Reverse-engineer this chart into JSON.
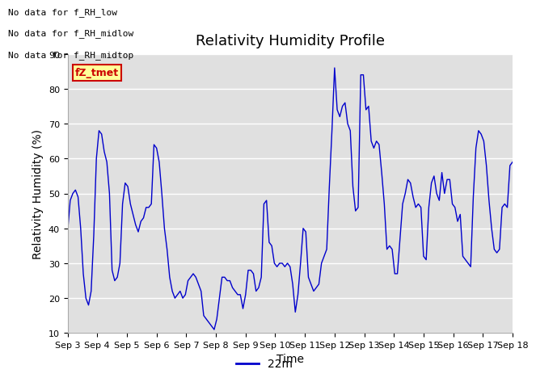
{
  "title": "Relativity Humidity Profile",
  "ylabel": "Relativity Humidity (%)",
  "xlabel": "Time",
  "legend_label": "22m",
  "legend_color": "#0000CC",
  "ylim": [
    10,
    90
  ],
  "yticks": [
    10,
    20,
    30,
    40,
    50,
    60,
    70,
    80,
    90
  ],
  "xtick_labels": [
    "Sep 3",
    "Sep 4",
    "Sep 5",
    "Sep 6",
    "Sep 7",
    "Sep 8",
    "Sep 9",
    "Sep 10",
    "Sep 11",
    "Sep 12",
    "Sep 13",
    "Sep 14",
    "Sep 15",
    "Sep 16",
    "Sep 17",
    "Sep 18"
  ],
  "annotations": [
    "No data for f_RH_low",
    "No data for f_RH_midlow",
    "No data for f_RH_midtop"
  ],
  "fz_tmet_box": {
    "text": "fZ_tmet",
    "color": "#CC0000",
    "bg": "#FFFF99",
    "border": "#CC0000"
  },
  "line_color": "#0000CC",
  "bg_color": "#E0E0E0",
  "title_fontsize": 13,
  "axis_label_fontsize": 10,
  "tick_fontsize": 8,
  "annotation_fontsize": 8,
  "humidity_data": [
    39,
    48,
    50,
    51,
    49,
    40,
    27,
    20,
    18,
    22,
    38,
    60,
    68,
    67,
    62,
    59,
    50,
    28,
    25,
    26,
    30,
    47,
    53,
    52,
    47,
    44,
    41,
    39,
    42,
    43,
    46,
    46,
    47,
    64,
    63,
    59,
    50,
    40,
    34,
    26,
    22,
    20,
    21,
    22,
    20,
    21,
    25,
    26,
    27,
    26,
    24,
    22,
    15,
    14,
    13,
    12,
    11,
    14,
    20,
    26,
    26,
    25,
    25,
    23,
    22,
    21,
    21,
    17,
    21,
    28,
    28,
    27,
    22,
    23,
    26,
    47,
    48,
    36,
    35,
    30,
    29,
    30,
    30,
    29,
    30,
    29,
    24,
    16,
    21,
    30,
    40,
    39,
    26,
    24,
    22,
    23,
    24,
    30,
    32,
    34,
    52,
    68,
    86,
    74,
    72,
    75,
    76,
    70,
    68,
    52,
    45,
    46,
    84,
    84,
    74,
    75,
    65,
    63,
    65,
    64,
    56,
    47,
    34,
    35,
    34,
    27,
    27,
    37,
    47,
    50,
    54,
    53,
    49,
    46,
    47,
    46,
    32,
    31,
    46,
    53,
    55,
    50,
    48,
    56,
    50,
    54,
    54,
    47,
    46,
    42,
    44,
    32,
    31,
    30,
    29,
    49,
    63,
    68,
    67,
    65,
    58,
    48,
    40,
    34,
    33,
    34,
    46,
    47,
    46,
    58,
    59
  ]
}
